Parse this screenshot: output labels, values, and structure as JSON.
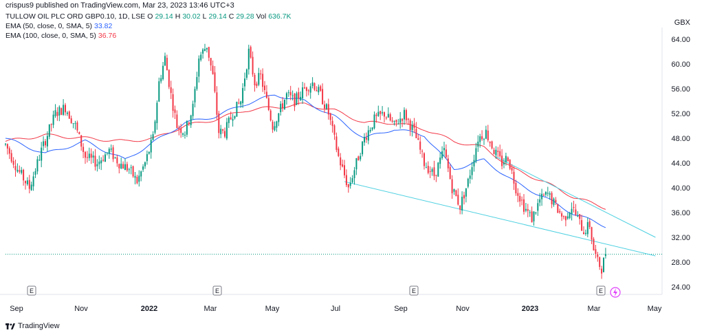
{
  "header": {
    "publisher": "crispus9 published on TradingView.com, Mar 23, 2023 13:46 UTC+3",
    "symbol": "TULLOW OIL PLC ORD GBP0.10, 1D, LSE",
    "ohlc": {
      "o_label": "O",
      "o": "29.14",
      "h_label": "H",
      "h": "30.02",
      "l_label": "L",
      "l": "29.14",
      "c_label": "C",
      "c": "29.28",
      "vol_label": "Vol",
      "vol": "636.7K"
    },
    "indicators": [
      {
        "label": "EMA (50, close, 0, SMA, 5)",
        "value": "33.82",
        "color": "#2962ff"
      },
      {
        "label": "EMA (100, close, 0, SMA, 5)",
        "value": "36.76",
        "color": "#f23645"
      }
    ],
    "currency": "GBX"
  },
  "footer": {
    "brand": "TradingView"
  },
  "chart_data": {
    "type": "candlestick",
    "ylim": [
      22,
      66
    ],
    "y_ticks": [
      "64.00",
      "60.00",
      "56.00",
      "52.00",
      "48.00",
      "44.00",
      "40.00",
      "36.00",
      "32.00",
      "28.00",
      "24.00"
    ],
    "x_ticks": [
      "Sep",
      "Nov",
      "2022",
      "Mar",
      "May",
      "Jul",
      "Sep",
      "Nov",
      "2023",
      "Mar",
      "May"
    ],
    "bold_x_ticks": [
      "2022",
      "2023"
    ],
    "earnings_markers": [
      "E",
      "E",
      "E",
      "E"
    ],
    "dividend_marker": "lightning",
    "last_price": 29.28,
    "up_color": "#089981",
    "down_color": "#f23645",
    "price_trace": [
      [
        0,
        47
      ],
      [
        6,
        43
      ],
      [
        12,
        40
      ],
      [
        18,
        46
      ],
      [
        25,
        52
      ],
      [
        30,
        53
      ],
      [
        35,
        50
      ],
      [
        40,
        45
      ],
      [
        46,
        44
      ],
      [
        52,
        46
      ],
      [
        57,
        44
      ],
      [
        62,
        43
      ],
      [
        66,
        41
      ],
      [
        70,
        44
      ],
      [
        74,
        48
      ],
      [
        77,
        57
      ],
      [
        80,
        61
      ],
      [
        83,
        55
      ],
      [
        86,
        50
      ],
      [
        90,
        49
      ],
      [
        94,
        53
      ],
      [
        97,
        61
      ],
      [
        101,
        63
      ],
      [
        104,
        58
      ],
      [
        107,
        49
      ],
      [
        110,
        49
      ],
      [
        114,
        52
      ],
      [
        118,
        54
      ],
      [
        122,
        62
      ],
      [
        125,
        57
      ],
      [
        128,
        58
      ],
      [
        131,
        54
      ],
      [
        134,
        50
      ],
      [
        137,
        52
      ],
      [
        141,
        55
      ],
      [
        145,
        54
      ],
      [
        150,
        56
      ],
      [
        154,
        57
      ],
      [
        158,
        55
      ],
      [
        162,
        52
      ],
      [
        167,
        45
      ],
      [
        172,
        40
      ],
      [
        176,
        44
      ],
      [
        180,
        48
      ],
      [
        185,
        51
      ],
      [
        190,
        52
      ],
      [
        195,
        50
      ],
      [
        200,
        52
      ],
      [
        205,
        49
      ],
      [
        210,
        44
      ],
      [
        215,
        42
      ],
      [
        220,
        46
      ],
      [
        224,
        40
      ],
      [
        228,
        37
      ],
      [
        232,
        41
      ],
      [
        237,
        48
      ],
      [
        241,
        49
      ],
      [
        245,
        46
      ],
      [
        249,
        44
      ],
      [
        252,
        45
      ],
      [
        256,
        40
      ],
      [
        260,
        37
      ],
      [
        264,
        35
      ],
      [
        268,
        38
      ],
      [
        272,
        39
      ],
      [
        276,
        37
      ],
      [
        280,
        35
      ],
      [
        284,
        37
      ],
      [
        287,
        35
      ],
      [
        290,
        33
      ],
      [
        293,
        34
      ],
      [
        295,
        30
      ],
      [
        297,
        28
      ],
      [
        299,
        27
      ],
      [
        301,
        29.28
      ]
    ],
    "ema50": [
      [
        0,
        48.0
      ],
      [
        20,
        45.5
      ],
      [
        40,
        47.5
      ],
      [
        60,
        44.5
      ],
      [
        75,
        47.5
      ],
      [
        90,
        50.5
      ],
      [
        105,
        51.5
      ],
      [
        120,
        53.5
      ],
      [
        135,
        55.0
      ],
      [
        150,
        54.0
      ],
      [
        165,
        51.5
      ],
      [
        180,
        48.0
      ],
      [
        195,
        49.5
      ],
      [
        210,
        48.5
      ],
      [
        225,
        43.0
      ],
      [
        240,
        44.5
      ],
      [
        255,
        41.0
      ],
      [
        270,
        38.5
      ],
      [
        285,
        35.8
      ],
      [
        301,
        33.82
      ]
    ],
    "ema100": [
      [
        0,
        47.5
      ],
      [
        20,
        48.5
      ],
      [
        40,
        48.0
      ],
      [
        60,
        47.5
      ],
      [
        75,
        48.0
      ],
      [
        90,
        50.0
      ],
      [
        105,
        51.0
      ],
      [
        120,
        52.5
      ],
      [
        135,
        53.0
      ],
      [
        150,
        53.5
      ],
      [
        165,
        52.5
      ],
      [
        180,
        50.5
      ],
      [
        195,
        50.5
      ],
      [
        210,
        49.5
      ],
      [
        225,
        47.5
      ],
      [
        240,
        46.5
      ],
      [
        255,
        43.0
      ],
      [
        270,
        41.0
      ],
      [
        285,
        38.5
      ],
      [
        301,
        36.76
      ]
    ],
    "trendlines": [
      {
        "from": [
          170,
          41.0
        ],
        "to": [
          326,
          29.0
        ]
      },
      {
        "from": [
          246,
          45.0
        ],
        "to": [
          326,
          32.0
        ]
      }
    ]
  }
}
